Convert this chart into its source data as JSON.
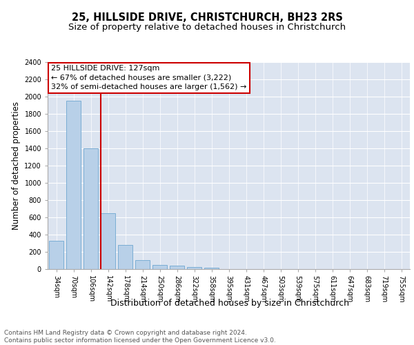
{
  "title": "25, HILLSIDE DRIVE, CHRISTCHURCH, BH23 2RS",
  "subtitle": "Size of property relative to detached houses in Christchurch",
  "xlabel": "Distribution of detached houses by size in Christchurch",
  "ylabel": "Number of detached properties",
  "categories": [
    "34sqm",
    "70sqm",
    "106sqm",
    "142sqm",
    "178sqm",
    "214sqm",
    "250sqm",
    "286sqm",
    "322sqm",
    "358sqm",
    "395sqm",
    "431sqm",
    "467sqm",
    "503sqm",
    "539sqm",
    "575sqm",
    "611sqm",
    "647sqm",
    "683sqm",
    "719sqm",
    "755sqm"
  ],
  "values": [
    325,
    1950,
    1400,
    650,
    280,
    105,
    50,
    38,
    28,
    20,
    0,
    0,
    0,
    0,
    0,
    0,
    0,
    0,
    0,
    0,
    0
  ],
  "bar_color": "#b8d0e8",
  "bar_edge_color": "#7aadd4",
  "background_color": "#dce4f0",
  "grid_color": "#ffffff",
  "fig_background": "#ffffff",
  "annotation_line1": "25 HILLSIDE DRIVE: 127sqm",
  "annotation_line2": "← 67% of detached houses are smaller (3,222)",
  "annotation_line3": "32% of semi-detached houses are larger (1,562) →",
  "annotation_box_color": "#cc0000",
  "vline_color": "#cc0000",
  "ylim": [
    0,
    2400
  ],
  "yticks": [
    0,
    200,
    400,
    600,
    800,
    1000,
    1200,
    1400,
    1600,
    1800,
    2000,
    2200,
    2400
  ],
  "title_fontsize": 10.5,
  "subtitle_fontsize": 9.5,
  "xlabel_fontsize": 9,
  "ylabel_fontsize": 8.5,
  "tick_fontsize": 7,
  "annotation_fontsize": 8,
  "footer_fontsize": 6.5,
  "footer_text": "Contains HM Land Registry data © Crown copyright and database right 2024.\nContains public sector information licensed under the Open Government Licence v3.0."
}
